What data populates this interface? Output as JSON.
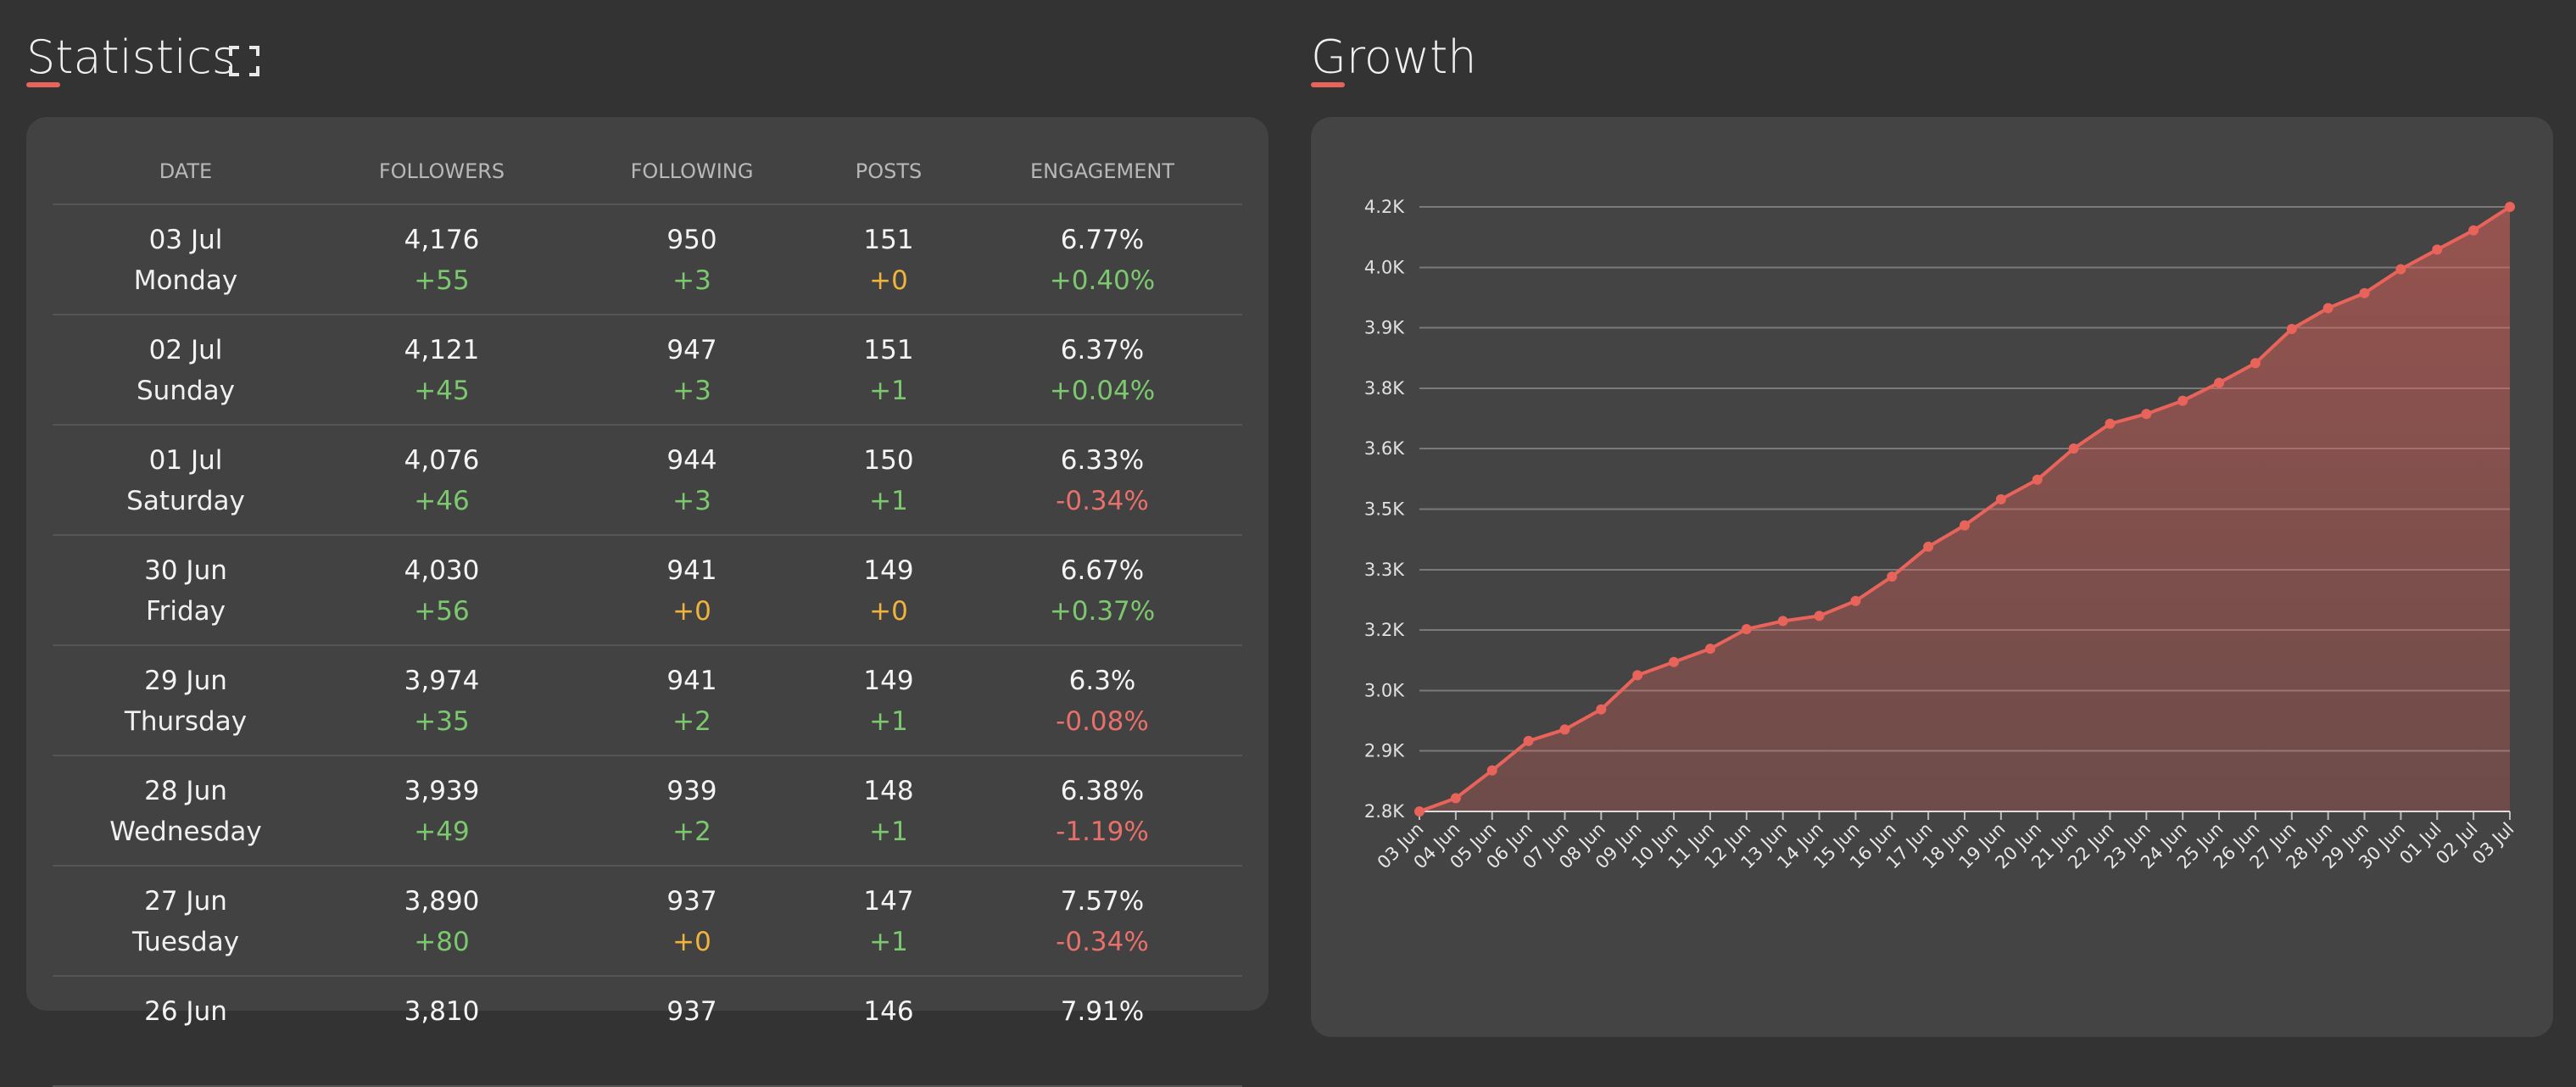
{
  "statistics": {
    "title": "Statistics",
    "columns": [
      "DATE",
      "FOLLOWERS",
      "FOLLOWING",
      "POSTS",
      "ENGAGEMENT"
    ],
    "rows": [
      [
        {
          "top": "03 Jul",
          "bottom": "Monday"
        },
        {
          "top": "4,176",
          "bottom": "+55"
        },
        {
          "top": "950",
          "bottom": "+3"
        },
        {
          "top": "151",
          "bottom": "+0"
        },
        {
          "top": "6.77%",
          "bottom": "+0.40%"
        }
      ],
      [
        {
          "top": "02 Jul",
          "bottom": "Sunday"
        },
        {
          "top": "4,121",
          "bottom": "+45"
        },
        {
          "top": "947",
          "bottom": "+3"
        },
        {
          "top": "151",
          "bottom": "+1"
        },
        {
          "top": "6.37%",
          "bottom": "+0.04%"
        }
      ],
      [
        {
          "top": "01 Jul",
          "bottom": "Saturday"
        },
        {
          "top": "4,076",
          "bottom": "+46"
        },
        {
          "top": "944",
          "bottom": "+3"
        },
        {
          "top": "150",
          "bottom": "+1"
        },
        {
          "top": "6.33%",
          "bottom": "-0.34%"
        }
      ],
      [
        {
          "top": "30 Jun",
          "bottom": "Friday"
        },
        {
          "top": "4,030",
          "bottom": "+56"
        },
        {
          "top": "941",
          "bottom": "+0"
        },
        {
          "top": "149",
          "bottom": "+0"
        },
        {
          "top": "6.67%",
          "bottom": "+0.37%"
        }
      ],
      [
        {
          "top": "29 Jun",
          "bottom": "Thursday"
        },
        {
          "top": "3,974",
          "bottom": "+35"
        },
        {
          "top": "941",
          "bottom": "+2"
        },
        {
          "top": "149",
          "bottom": "+1"
        },
        {
          "top": "6.3%",
          "bottom": "-0.08%"
        }
      ],
      [
        {
          "top": "28 Jun",
          "bottom": "Wednesday"
        },
        {
          "top": "3,939",
          "bottom": "+49"
        },
        {
          "top": "939",
          "bottom": "+2"
        },
        {
          "top": "148",
          "bottom": "+1"
        },
        {
          "top": "6.38%",
          "bottom": "-1.19%"
        }
      ],
      [
        {
          "top": "27 Jun",
          "bottom": "Tuesday"
        },
        {
          "top": "3,890",
          "bottom": "+80"
        },
        {
          "top": "937",
          "bottom": "+0"
        },
        {
          "top": "147",
          "bottom": "+1"
        },
        {
          "top": "7.57%",
          "bottom": "-0.34%"
        }
      ],
      [
        {
          "top": "26 Jun"
        },
        {
          "top": "3,810"
        },
        {
          "top": "937"
        },
        {
          "top": "146"
        },
        {
          "top": "7.91%"
        }
      ]
    ]
  },
  "chart_data": {
    "type": "area",
    "title": "Growth",
    "color": "#e8635a",
    "categories": [
      "03 Jun",
      "04 Jun",
      "05 Jun",
      "06 Jun",
      "07 Jun",
      "08 Jun",
      "09 Jun",
      "10 Jun",
      "11 Jun",
      "12 Jun",
      "13 Jun",
      "14 Jun",
      "15 Jun",
      "16 Jun",
      "17 Jun",
      "18 Jun",
      "19 Jun",
      "20 Jun",
      "21 Jun",
      "22 Jun",
      "23 Jun",
      "24 Jun",
      "25 Jun",
      "26 Jun",
      "27 Jun",
      "28 Jun",
      "29 Jun",
      "30 Jun",
      "01 Jul",
      "02 Jul",
      "03 Jul"
    ],
    "values": [
      2760,
      2791,
      2856,
      2925,
      2952,
      2999,
      3079,
      3110,
      3141,
      3187,
      3206,
      3218,
      3253,
      3310,
      3380,
      3430,
      3491,
      3537,
      3610,
      3668,
      3691,
      3722,
      3764,
      3810,
      3890,
      3939,
      3974,
      4030,
      4076,
      4121,
      4176
    ],
    "ylim": [
      2760,
      4176
    ],
    "yticks": [
      {
        "value": 2760,
        "label": "2.8K"
      },
      {
        "value": 2902,
        "label": "2.9K"
      },
      {
        "value": 3043,
        "label": "3.0K"
      },
      {
        "value": 3185,
        "label": "3.2K"
      },
      {
        "value": 3326,
        "label": "3.3K"
      },
      {
        "value": 3468,
        "label": "3.5K"
      },
      {
        "value": 3610,
        "label": "3.6K"
      },
      {
        "value": 3751,
        "label": "3.8K"
      },
      {
        "value": 3893,
        "label": "3.9K"
      },
      {
        "value": 4034,
        "label": "4.0K"
      },
      {
        "value": 4176,
        "label": "4.2K"
      }
    ],
    "grid": true
  }
}
